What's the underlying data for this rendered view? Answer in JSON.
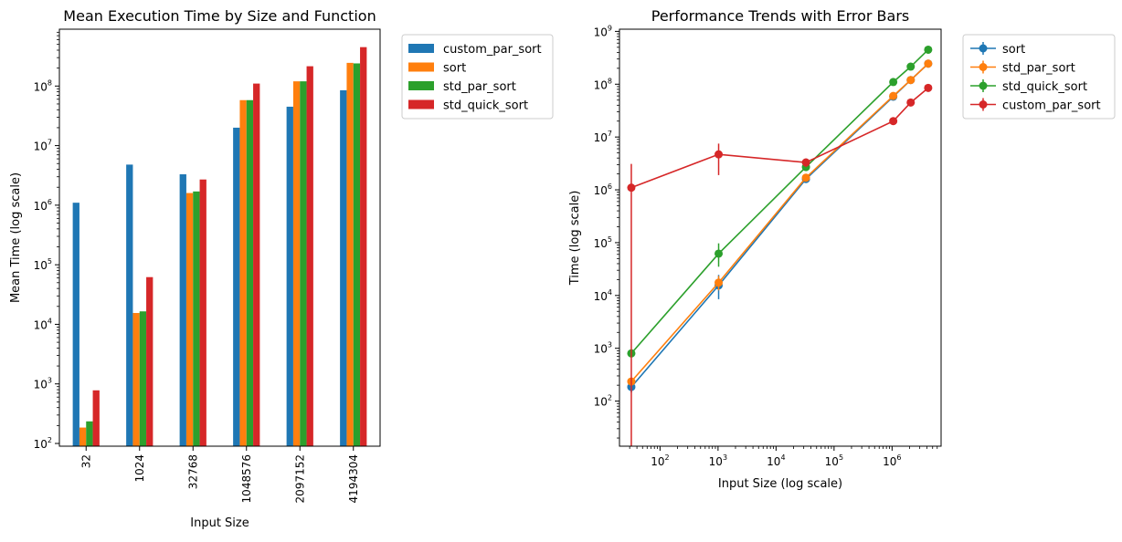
{
  "colors": {
    "blue": "#1f77b4",
    "orange": "#ff7f0e",
    "green": "#2ca02c",
    "red": "#d62728",
    "axis": "#000000"
  },
  "chart_data": [
    {
      "type": "bar",
      "title": "Mean Execution Time by Size and Function",
      "xlabel": "Input Size",
      "ylabel": "Mean Time (log scale)",
      "yscale": "log",
      "ylim": [
        90,
        900000000.0
      ],
      "y_ticks": [
        {
          "value": 100,
          "base": "10",
          "exp": "2"
        },
        {
          "value": 1000,
          "base": "10",
          "exp": "3"
        },
        {
          "value": 10000,
          "base": "10",
          "exp": "4"
        },
        {
          "value": 100000,
          "base": "10",
          "exp": "5"
        },
        {
          "value": 1000000,
          "base": "10",
          "exp": "6"
        },
        {
          "value": 10000000,
          "base": "10",
          "exp": "7"
        },
        {
          "value": 100000000,
          "base": "10",
          "exp": "8"
        }
      ],
      "categories": [
        "32",
        "1024",
        "32768",
        "1048576",
        "2097152",
        "4194304"
      ],
      "legend": "top-right, outside",
      "series": [
        {
          "name": "custom_par_sort",
          "color": "#1f77b4",
          "values": [
            1100000,
            4800000,
            3300000,
            20000000,
            45000000,
            85000000
          ]
        },
        {
          "name": "sort",
          "color": "#ff7f0e",
          "values": [
            185,
            15500,
            1600000,
            58000000,
            120000000,
            245000000
          ]
        },
        {
          "name": "std_par_sort",
          "color": "#2ca02c",
          "values": [
            235,
            16500,
            1700000,
            58000000,
            120000000,
            240000000
          ]
        },
        {
          "name": "std_quick_sort",
          "color": "#d62728",
          "values": [
            780,
            62000,
            2700000,
            110000000,
            215000000,
            450000000
          ]
        }
      ]
    },
    {
      "type": "line",
      "title": "Performance Trends with Error Bars",
      "xlabel": "Input Size (log scale)",
      "ylabel": "Time (log scale)",
      "xscale": "log",
      "yscale": "log",
      "xlim": [
        20,
        7000000.0
      ],
      "ylim": [
        14,
        1100000000.0
      ],
      "x_ticks": [
        {
          "value": 100,
          "base": "10",
          "exp": "2"
        },
        {
          "value": 1000,
          "base": "10",
          "exp": "3"
        },
        {
          "value": 10000,
          "base": "10",
          "exp": "4"
        },
        {
          "value": 100000,
          "base": "10",
          "exp": "5"
        },
        {
          "value": 1000000,
          "base": "10",
          "exp": "6"
        }
      ],
      "y_ticks": [
        {
          "value": 100,
          "base": "10",
          "exp": "2"
        },
        {
          "value": 1000,
          "base": "10",
          "exp": "3"
        },
        {
          "value": 10000,
          "base": "10",
          "exp": "4"
        },
        {
          "value": 100000,
          "base": "10",
          "exp": "5"
        },
        {
          "value": 1000000,
          "base": "10",
          "exp": "6"
        },
        {
          "value": 10000000,
          "base": "10",
          "exp": "7"
        },
        {
          "value": 100000000,
          "base": "10",
          "exp": "8"
        },
        {
          "value": 1000000000,
          "base": "10",
          "exp": "9"
        }
      ],
      "x": [
        32,
        1024,
        32768,
        1048576,
        2097152,
        4194304
      ],
      "legend": "top-right, outside",
      "series": [
        {
          "name": "sort",
          "color": "#1f77b4",
          "values": [
            185,
            15500,
            1600000,
            58000000,
            120000000,
            245000000
          ],
          "err_low": [
            40,
            7000,
            0,
            0,
            0,
            0
          ],
          "err_high": [
            40,
            9000,
            0,
            0,
            0,
            0
          ]
        },
        {
          "name": "std_par_sort",
          "color": "#ff7f0e",
          "values": [
            235,
            17500,
            1700000,
            60000000,
            120000000,
            245000000
          ],
          "err_low": [
            0,
            5000,
            0,
            0,
            0,
            0
          ],
          "err_high": [
            0,
            6000,
            0,
            0,
            0,
            0
          ]
        },
        {
          "name": "std_quick_sort",
          "color": "#2ca02c",
          "values": [
            800,
            62000,
            2700000,
            110000000,
            215000000,
            450000000
          ],
          "err_low": [
            0,
            27000,
            0,
            0,
            0,
            0
          ],
          "err_high": [
            0,
            35000,
            0,
            0,
            0,
            0
          ]
        },
        {
          "name": "custom_par_sort",
          "color": "#d62728",
          "values": [
            1100000,
            4700000,
            3300000,
            20000000,
            45000000,
            85000000
          ],
          "err_low": [
            1099990,
            2800000,
            600000,
            0,
            0,
            0
          ],
          "err_high": [
            2000000,
            2800000,
            600000,
            0,
            0,
            0
          ]
        }
      ]
    }
  ]
}
